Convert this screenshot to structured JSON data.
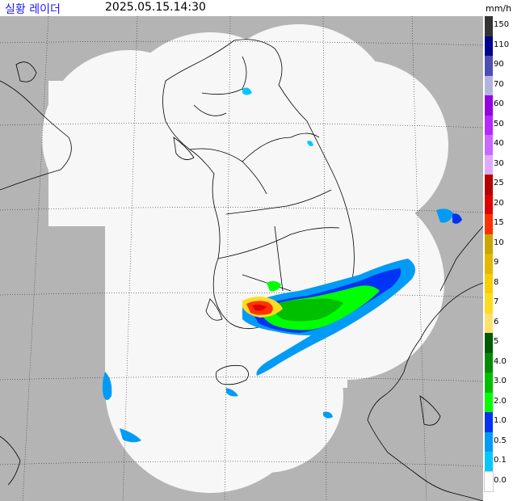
{
  "header": {
    "title": "실황 레이더",
    "timestamp": "2025.05.15.14:30",
    "unit": "mm/h"
  },
  "legend": {
    "items": [
      {
        "label": "150",
        "color": "#333333"
      },
      {
        "label": "110",
        "color": "#000390"
      },
      {
        "label": "90",
        "color": "#4c4eb1"
      },
      {
        "label": "70",
        "color": "#b3b4de"
      },
      {
        "label": "60",
        "color": "#9300e4"
      },
      {
        "label": "50",
        "color": "#b329ff"
      },
      {
        "label": "40",
        "color": "#c969ff"
      },
      {
        "label": "30",
        "color": "#e0a9ff"
      },
      {
        "label": "25",
        "color": "#b40000"
      },
      {
        "label": "20",
        "color": "#e00000"
      },
      {
        "label": "15",
        "color": "#fe3200"
      },
      {
        "label": "10",
        "color": "#cca500"
      },
      {
        "label": "9",
        "color": "#e0b900"
      },
      {
        "label": "8",
        "color": "#f9cd00"
      },
      {
        "label": "7",
        "color": "#ffdc1f"
      },
      {
        "label": "6",
        "color": "#ffe16e"
      },
      {
        "label": "5",
        "color": "#005a00"
      },
      {
        "label": "4.0",
        "color": "#008c00"
      },
      {
        "label": "3.0",
        "color": "#00be00"
      },
      {
        "label": "2.0",
        "color": "#00ff00"
      },
      {
        "label": "1.0",
        "color": "#0033f5"
      },
      {
        "label": "0.5",
        "color": "#009bf5"
      },
      {
        "label": "0.1",
        "color": "#00c8ff"
      },
      {
        "label": "0.0",
        "color": "#ffffff"
      }
    ]
  },
  "colors": {
    "outside_coverage": "#b4b4b4",
    "coverage": "#f7f7f7",
    "coastline": "#000000",
    "grid": "#333333"
  }
}
